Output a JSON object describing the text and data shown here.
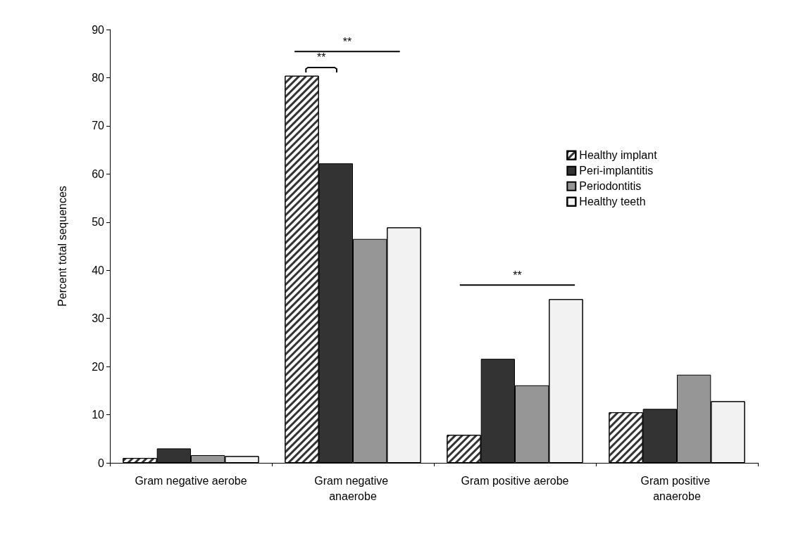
{
  "chart_data": {
    "type": "bar",
    "ylabel": "Percent total sequences",
    "categories": [
      "Gram negative aerobe",
      "Gram negative anaerobe",
      "Gram positive aerobe",
      "Gram positive anaerobe"
    ],
    "series": [
      {
        "name": "Healthy implant",
        "color": "#ffffff",
        "values": [
          1.0,
          80.4,
          5.8,
          10.5
        ]
      },
      {
        "name": "Peri-implantitis",
        "color": "#333333",
        "values": [
          3.0,
          62.2,
          21.6,
          11.2
        ]
      },
      {
        "name": "Periodontitis",
        "color": "#969696",
        "values": [
          1.6,
          46.5,
          16.1,
          18.3
        ]
      },
      {
        "name": "Healthy teeth",
        "color": "#f2f2f2",
        "values": [
          1.4,
          48.9,
          34.0,
          12.8
        ]
      }
    ],
    "ylim": [
      0,
      90
    ],
    "yticks": [
      0,
      10,
      20,
      30,
      40,
      50,
      60,
      70,
      80,
      90
    ],
    "annotations": [
      "**",
      "**",
      "**"
    ],
    "grid": false,
    "legend": "right"
  }
}
